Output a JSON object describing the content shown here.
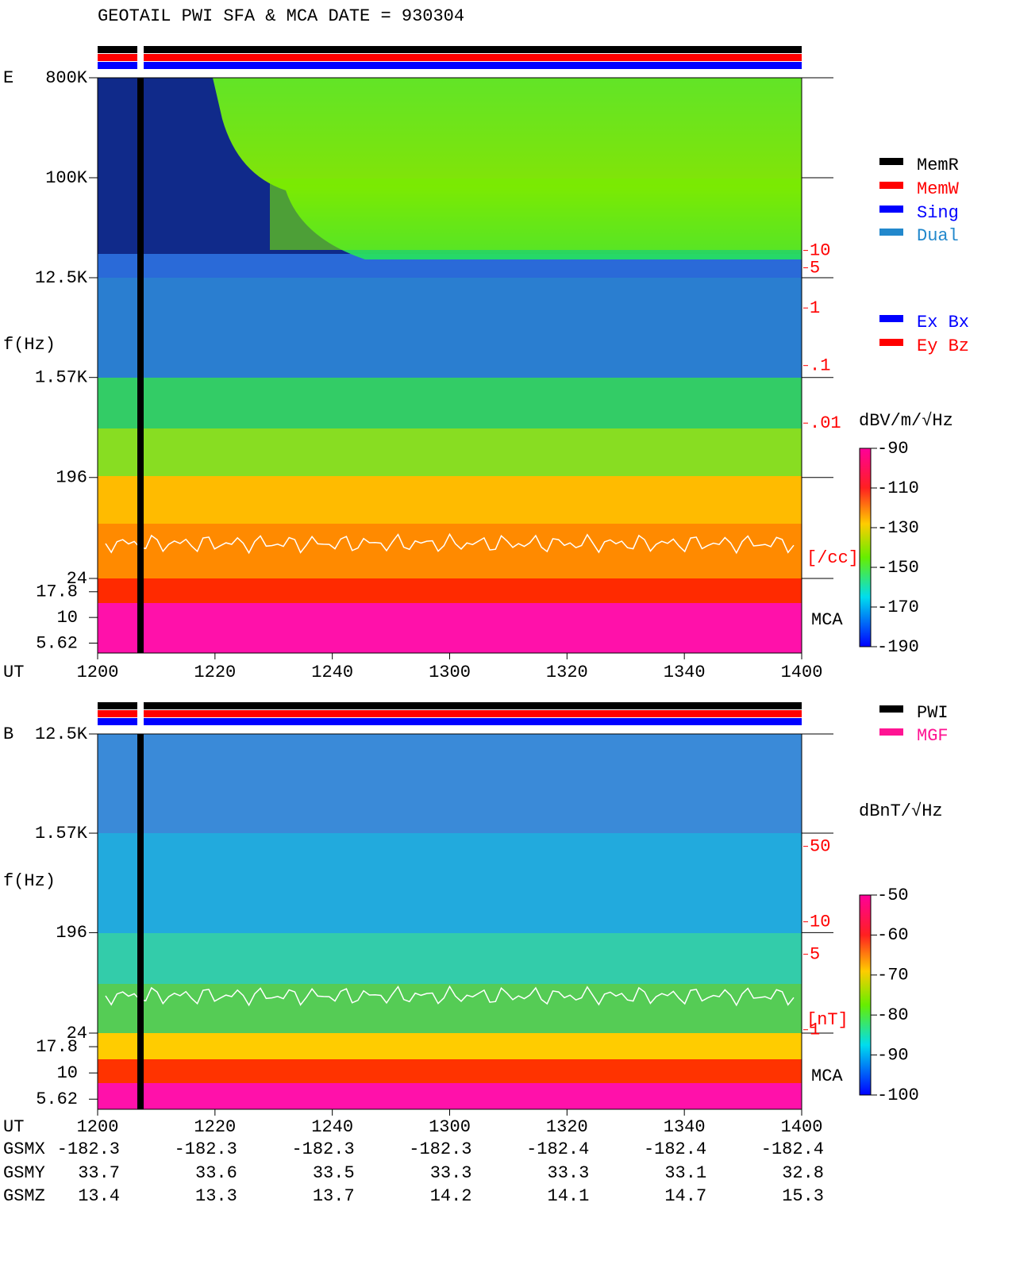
{
  "header": "GEOTAIL  PWI SFA & MCA   DATE = 930304",
  "chart_data": [
    {
      "type": "spectrogram",
      "panel_label": "E",
      "ylabel": "f(Hz)",
      "xlabel": "UT",
      "log_y": true,
      "x": [
        "1200",
        "1220",
        "1240",
        "1300",
        "1320",
        "1340",
        "1400"
      ],
      "ylim": [
        24,
        800000
      ],
      "yticks": [
        {
          "value": 800000,
          "label": "800K"
        },
        {
          "value": 100000,
          "label": "100K"
        },
        {
          "value": 12500,
          "label": "12.5K"
        },
        {
          "value": 1570,
          "label": "1.57K"
        },
        196,
        24
      ],
      "mca_ylim": [
        4.5,
        24
      ],
      "mca_ticks": [
        17.8,
        10,
        5.62
      ],
      "mca_label": "MCA",
      "y2lim": [
        2e-05,
        10000
      ],
      "y2ticks": [
        10,
        5,
        1,
        {
          "value": 0.1,
          "label": ".1"
        },
        {
          "value": 0.01,
          "label": ".01"
        }
      ],
      "y2_unit": "[/cc]",
      "colorbar": {
        "title": "dBV/m/√Hz",
        "clim": [
          -190,
          -90
        ],
        "ticks": [
          -90,
          -110,
          -130,
          -150,
          -170,
          -190
        ]
      },
      "legends": [
        [
          {
            "name": "MemR",
            "color": "#000000"
          },
          {
            "name": "MemW",
            "color": "#ff0000"
          },
          {
            "name": "Sing",
            "color": "#0000ff"
          },
          {
            "name": "Dual",
            "color": "#2288cc"
          }
        ],
        [
          {
            "name": "Ex Bx",
            "color": "#0000ff"
          },
          {
            "name": "Ey Bz",
            "color": "#ff0000"
          }
        ]
      ]
    },
    {
      "type": "spectrogram",
      "panel_label": "B",
      "ylabel": "f(Hz)",
      "xlabel": "UT",
      "log_y": true,
      "x": [
        "1200",
        "1220",
        "1240",
        "1300",
        "1320",
        "1340",
        "1400"
      ],
      "ylim": [
        24,
        12500
      ],
      "yticks": [
        {
          "value": 12500,
          "label": "12.5K"
        },
        {
          "value": 1570,
          "label": "1.57K"
        },
        196,
        24
      ],
      "mca_ylim": [
        4.5,
        24
      ],
      "mca_ticks": [
        17.8,
        10,
        5.62
      ],
      "mca_label": "MCA",
      "y2lim": [
        0.93,
        550
      ],
      "y2ticks": [
        50,
        10,
        5,
        1
      ],
      "y2_unit": "[nT]",
      "colorbar": {
        "title": "dBnT/√Hz",
        "clim": [
          -100,
          -50
        ],
        "ticks": [
          -50,
          -60,
          -70,
          -80,
          -90,
          -100
        ]
      },
      "legends": [
        [
          {
            "name": "PWI",
            "color": "#000000"
          },
          {
            "name": "MGF",
            "color": "#ff1493"
          }
        ]
      ]
    }
  ],
  "orbit": {
    "rows": [
      {
        "name": "GSMX",
        "values": [
          -182.3,
          -182.3,
          -182.3,
          -182.3,
          -182.4,
          -182.4,
          -182.4
        ]
      },
      {
        "name": "GSMY",
        "values": [
          33.7,
          33.6,
          33.5,
          33.3,
          33.3,
          33.1,
          32.8
        ]
      },
      {
        "name": "GSMZ",
        "values": [
          13.4,
          13.3,
          13.7,
          14.2,
          14.1,
          14.7,
          15.3
        ]
      }
    ]
  }
}
